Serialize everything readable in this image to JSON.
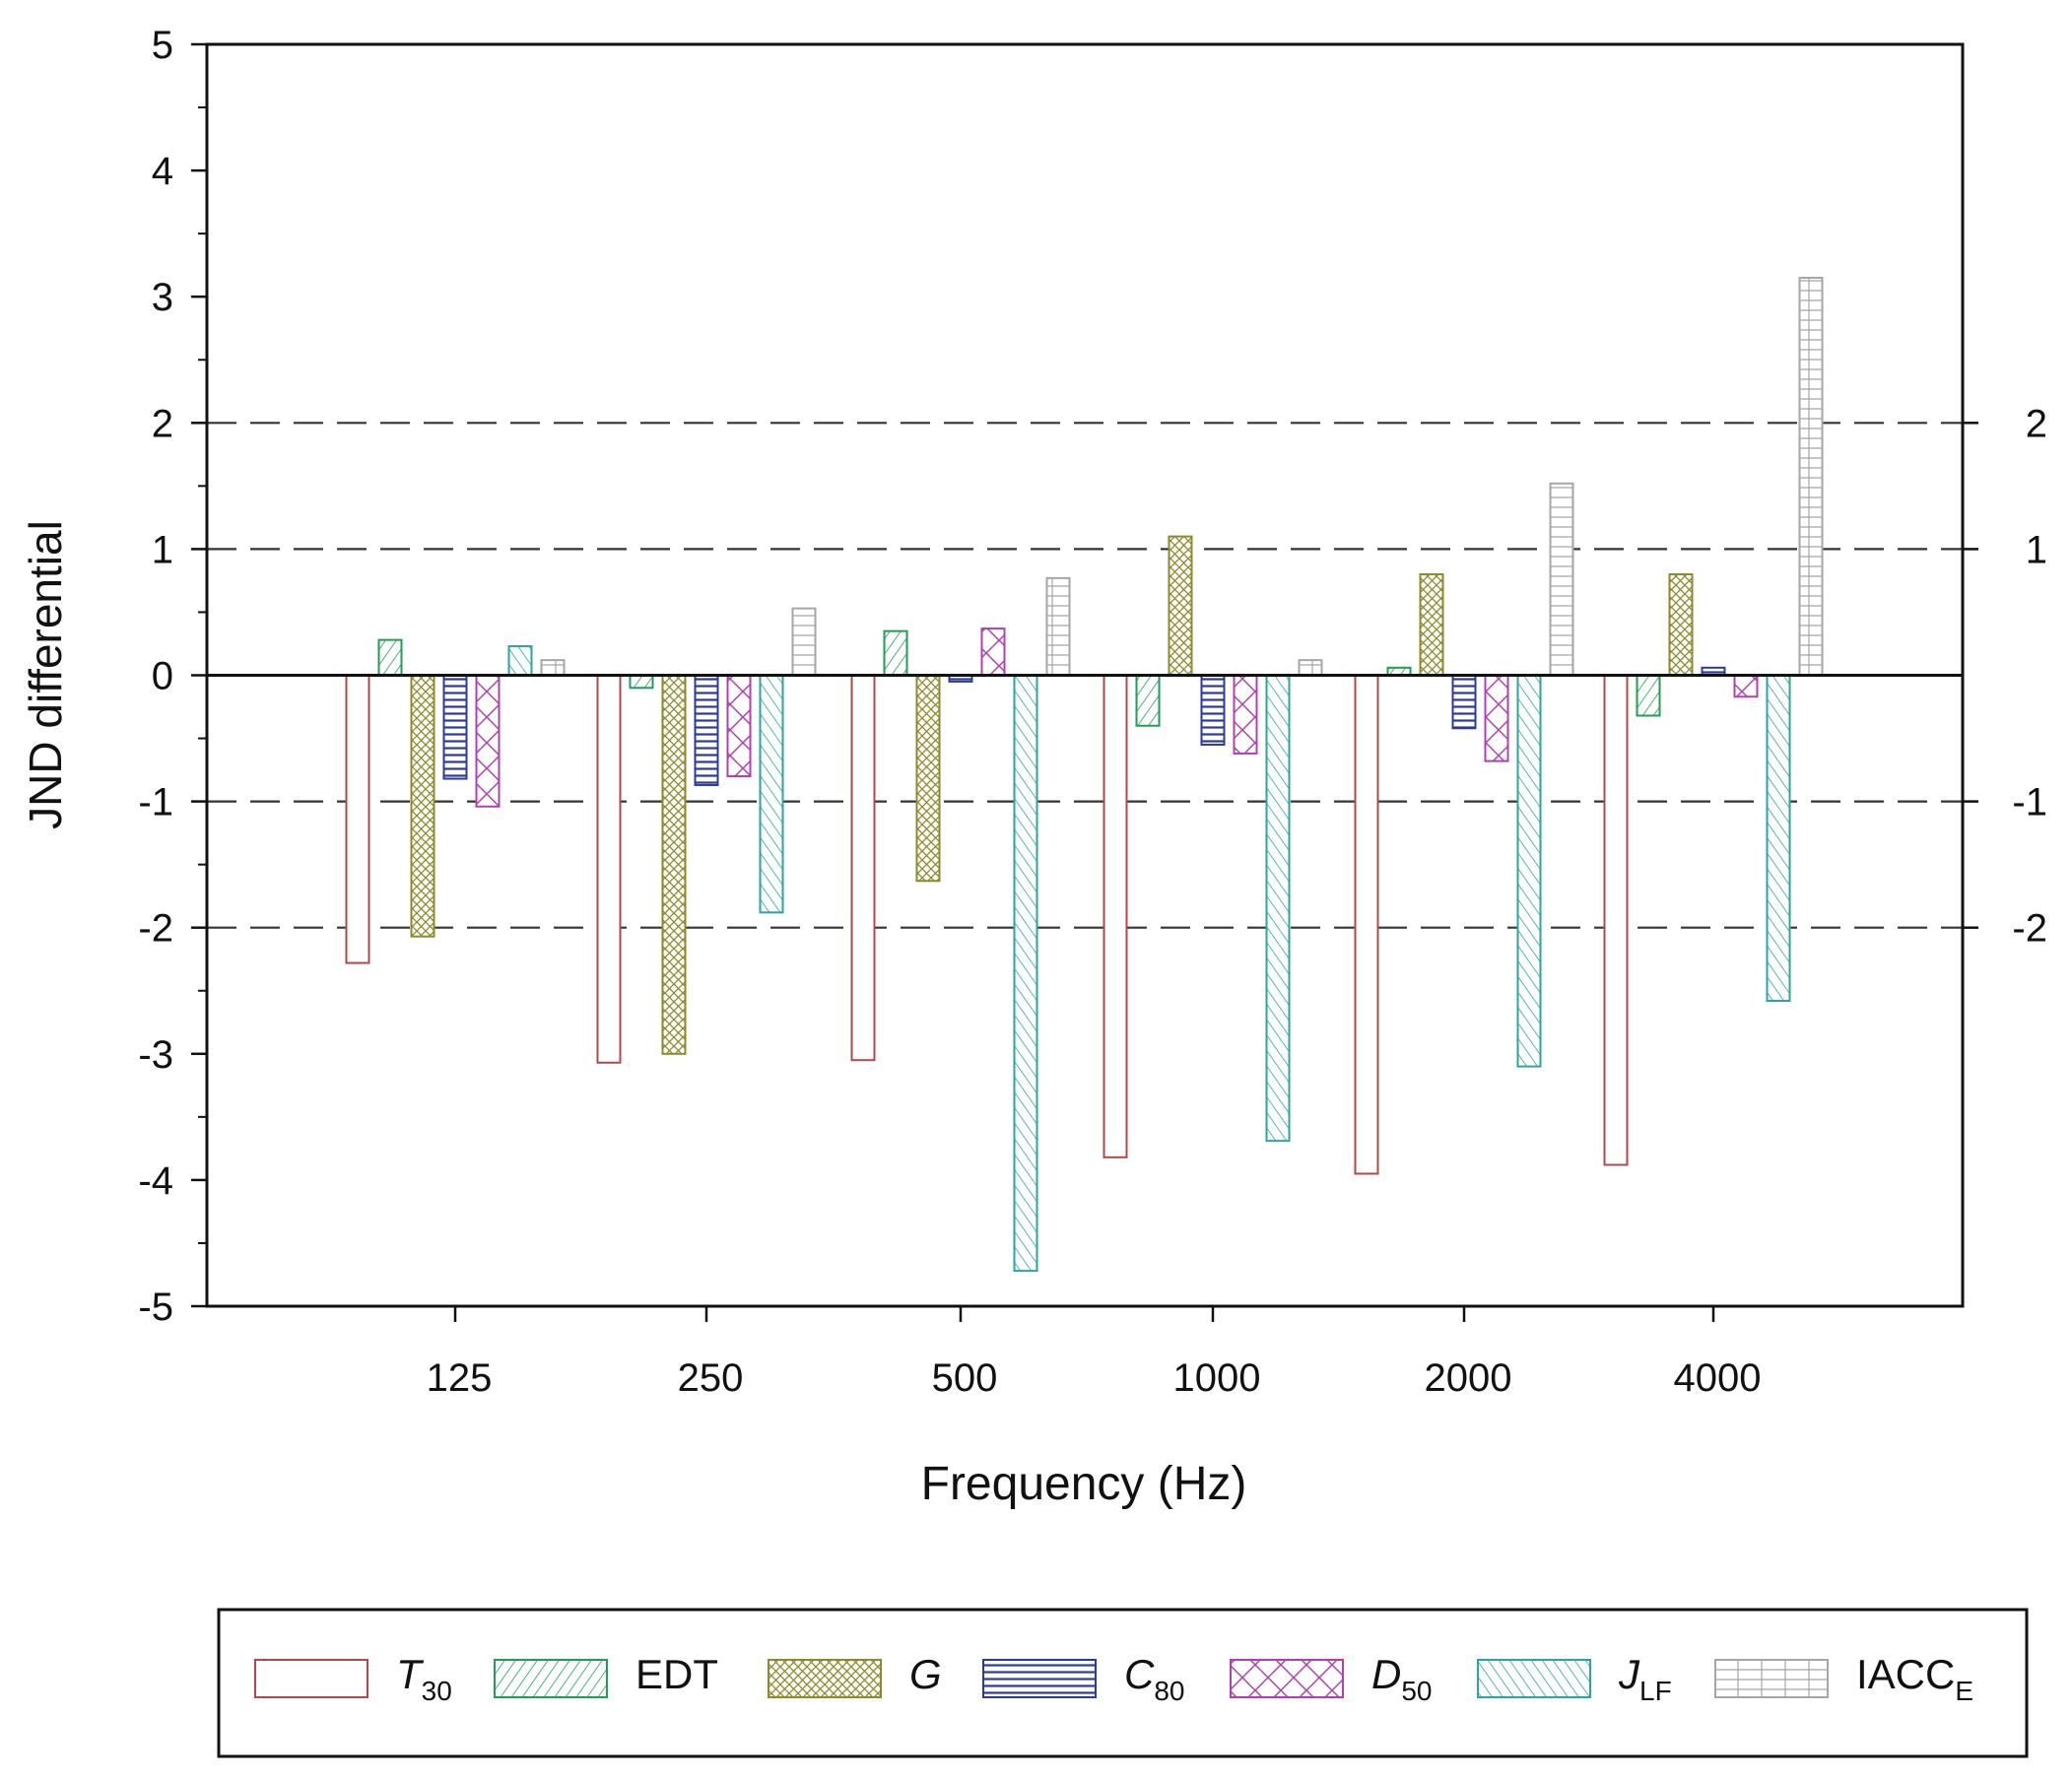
{
  "chart_data": {
    "type": "bar",
    "title": "",
    "xlabel": "Frequency (Hz)",
    "ylabel": "JND differential",
    "ylim": [
      -5,
      5
    ],
    "y_ticks": [
      "5",
      "4",
      "3",
      "2",
      "1",
      "0",
      "-1",
      "-2",
      "-3",
      "-4",
      "-5"
    ],
    "y_tick_values": [
      5,
      4,
      3,
      2,
      1,
      0,
      -1,
      -2,
      -3,
      -4,
      -5
    ],
    "right_ticks": [
      "2",
      "1",
      "-1",
      "-2"
    ],
    "right_tick_values": [
      2,
      1,
      -1,
      -2
    ],
    "reference_lines": [
      2,
      1,
      -1,
      -2
    ],
    "categories": [
      "125",
      "250",
      "500",
      "1000",
      "2000",
      "4000"
    ],
    "series": [
      {
        "name": "T30",
        "label_main": "T",
        "label_sub": "30",
        "italic": true,
        "color": "#b5474a",
        "pattern": "none",
        "values": [
          -2.28,
          -3.07,
          -3.05,
          -3.82,
          -3.95,
          -3.88
        ]
      },
      {
        "name": "EDT",
        "label_main": "EDT",
        "label_sub": "",
        "italic": false,
        "color": "#1f9e55",
        "pattern": "diag-right",
        "values": [
          0.28,
          -0.1,
          0.35,
          -0.4,
          0.06,
          -0.32
        ]
      },
      {
        "name": "G",
        "label_main": "G",
        "label_sub": "",
        "italic": true,
        "color": "#8c8a2a",
        "pattern": "crosshatch",
        "values": [
          -2.07,
          -3.0,
          -1.63,
          1.1,
          0.8,
          0.8
        ]
      },
      {
        "name": "C80",
        "label_main": "C",
        "label_sub": "80",
        "italic": true,
        "color": "#2b3a9e",
        "pattern": "horizontal",
        "values": [
          -0.82,
          -0.87,
          -0.05,
          -0.55,
          -0.42,
          0.06
        ]
      },
      {
        "name": "D50",
        "label_main": "D",
        "label_sub": "50",
        "italic": true,
        "color": "#b040b0",
        "pattern": "crosshatch-wide",
        "values": [
          -1.04,
          -0.8,
          0.37,
          -0.62,
          -0.68,
          -0.17
        ]
      },
      {
        "name": "JLF",
        "label_main": "J",
        "label_sub": "LF",
        "italic": true,
        "color": "#2aa5a5",
        "pattern": "diag-left",
        "values": [
          0.23,
          -1.88,
          -4.72,
          -3.69,
          -3.1,
          -2.58
        ]
      },
      {
        "name": "IACCE",
        "label_main": "IACC",
        "label_sub": "E",
        "italic": false,
        "color": "#a6a6a6",
        "pattern": "grid",
        "values": [
          0.12,
          0.53,
          0.77,
          0.12,
          1.52,
          3.15
        ]
      }
    ],
    "legend_position": "bottom"
  }
}
